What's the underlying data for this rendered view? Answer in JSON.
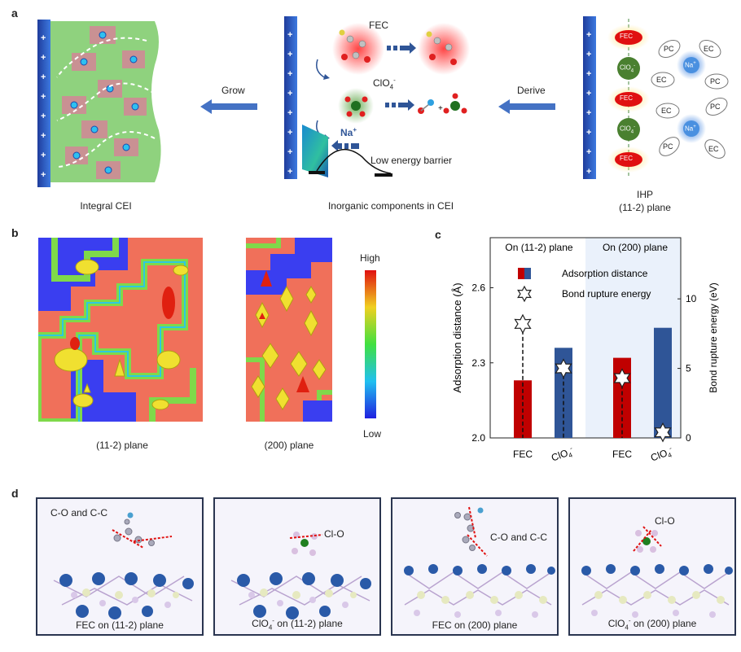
{
  "panel_a": {
    "label": "a",
    "left_caption": "Integral CEI",
    "mid_caption": "Inorganic components in CEI",
    "right_caption_1": "IHP",
    "right_caption_2": "(11-2) plane",
    "arrow_left_label": "Grow",
    "arrow_right_label": "Derive",
    "fec_label": "FEC",
    "clo4_label": "ClO",
    "clo4_sup": "4",
    "clo4_charge": "-",
    "na_label": "Na",
    "na_charge": "+",
    "barrier_label": "Low energy barrier",
    "plus": "+",
    "ihp_fec": "FEC",
    "ihp_clo4": "ClO",
    "ihp_clo4_sub": "4",
    "ihp_clo4_charge": "-",
    "solv_pc": "PC",
    "solv_ec": "EC",
    "solv_na": "Na",
    "solv_na_charge": "+"
  },
  "panel_b": {
    "label": "b",
    "map1_caption": "(11-2) plane",
    "map2_caption": "(200) plane",
    "colorbar_high": "High",
    "colorbar_low": "Low",
    "colors": {
      "blue": "#3a3ef0",
      "red": "#f0705a",
      "green": "#7fd94a",
      "yellow": "#f0e030",
      "cyan": "#2ec8e0",
      "orange": "#f0a030"
    }
  },
  "panel_c": {
    "label": "c",
    "chart_data": {
      "type": "bar",
      "groups": [
        "On (11-2) plane",
        "On (200) plane"
      ],
      "categories": [
        "FEC",
        "ClO4-",
        "FEC",
        "ClO4-"
      ],
      "category_labels": [
        "FEC",
        "ClO",
        "FEC",
        "ClO"
      ],
      "category_subs": [
        "",
        "4",
        "",
        "4"
      ],
      "category_sups": [
        "",
        "-",
        "",
        "-"
      ],
      "series": [
        {
          "name": "Adsorption distance",
          "axis": "left",
          "values": [
            2.23,
            2.36,
            2.32,
            2.44
          ],
          "colors": [
            "#c00000",
            "#2f5597",
            "#c00000",
            "#2f5597"
          ]
        },
        {
          "name": "Bond rupture energy",
          "axis": "right",
          "values": [
            8.2,
            5.0,
            4.3,
            0.4
          ]
        }
      ],
      "ylabel": "Adsorption distance (Å)",
      "y2label": "Bond rupture energy (eV)",
      "ylim": [
        2.0,
        2.8
      ],
      "yticks": [
        "2.0",
        "2.3",
        "2.6"
      ],
      "y2lim": [
        0,
        14.4
      ],
      "y2ticks": [
        "0",
        "5",
        "10"
      ],
      "legend_position": "top-left",
      "highlight_second_group": "#eaf1fb"
    }
  },
  "panel_d": {
    "label": "d",
    "panels": [
      {
        "caption": "FEC on (11-2) plane",
        "annotation": "C-O and C-C"
      },
      {
        "caption_main": "ClO",
        "caption_sub": "4",
        "caption_sup": "-",
        "caption_rest": " on (11-2) plane",
        "annotation": "Cl-O"
      },
      {
        "caption": "FEC on (200) plane",
        "annotation": "C-O and C-C"
      },
      {
        "caption_main": "ClO",
        "caption_sub": "4",
        "caption_sup": "-",
        "caption_rest": " on (200) plane",
        "annotation": "Cl-O"
      }
    ]
  }
}
